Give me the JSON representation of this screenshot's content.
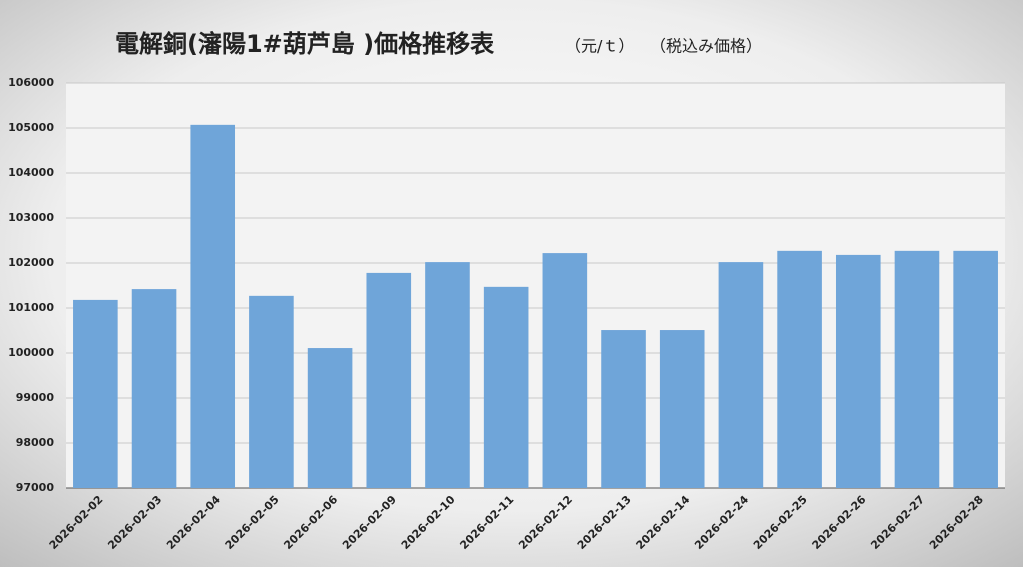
{
  "chart_data": {
    "type": "bar",
    "title": "電解銅(瀋陽1#葫芦島 )価格推移表",
    "unit": "（元/ｔ）",
    "note": "（税込み価格）",
    "categories": [
      "2026-02-02",
      "2026-02-03",
      "2026-02-04",
      "2026-02-05",
      "2026-02-06",
      "2026-02-09",
      "2026-02-10",
      "2026-02-11",
      "2026-02-12",
      "2026-02-13",
      "2026-02-14",
      "2026-02-24",
      "2026-02-25",
      "2026-02-26",
      "2026-02-27",
      "2026-02-28"
    ],
    "values": [
      101180,
      101420,
      105070,
      101270,
      100110,
      101780,
      102020,
      101470,
      102220,
      100510,
      100510,
      102020,
      102270,
      102180,
      102270,
      102270
    ],
    "color": "#6fa5d9",
    "ylim": [
      97000,
      106000
    ],
    "yticks": [
      97000,
      98000,
      99000,
      100000,
      101000,
      102000,
      103000,
      104000,
      105000,
      106000
    ],
    "grid": true
  }
}
